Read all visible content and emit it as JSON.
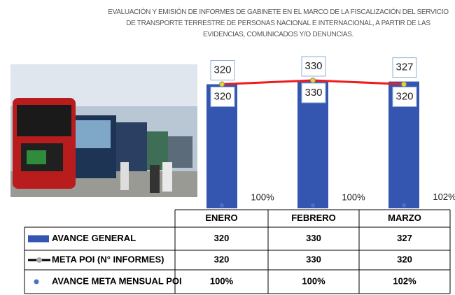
{
  "chart_data": {
    "type": "bar",
    "title": "EVALUACIÓN Y EMISIÓN DE INFORMES DE GABINETE EN EL MARCO DE LA FISCALIZACIÓN DEL SERVICIO DE TRANSPORTE TERRESTRE DE PERSONAS NACIONAL E INTERNACIONAL, A PARTIR DE LAS EVIDENCIAS, COMUNICADOS Y/O DENUNCIAS.",
    "categories": [
      "ENERO",
      "FEBRERO",
      "MARZO"
    ],
    "ylim": [
      0,
      375
    ],
    "y2lim": [
      0,
      5000
    ],
    "series": [
      {
        "name": "AVANCE GENERAL",
        "type": "bar",
        "color": "#3556b0",
        "values": [
          320,
          330,
          327
        ]
      },
      {
        "name": "META POI (N° INFORMES)",
        "type": "line",
        "color": "#ee1c1c",
        "values": [
          320,
          330,
          320
        ]
      },
      {
        "name": "AVANCE META MENSUAL POI",
        "type": "scatter",
        "color": "#4472c4",
        "axis": "y2",
        "values": [
          100,
          100,
          102
        ],
        "value_labels": [
          "100%",
          "100%",
          "102%"
        ]
      }
    ]
  }
}
